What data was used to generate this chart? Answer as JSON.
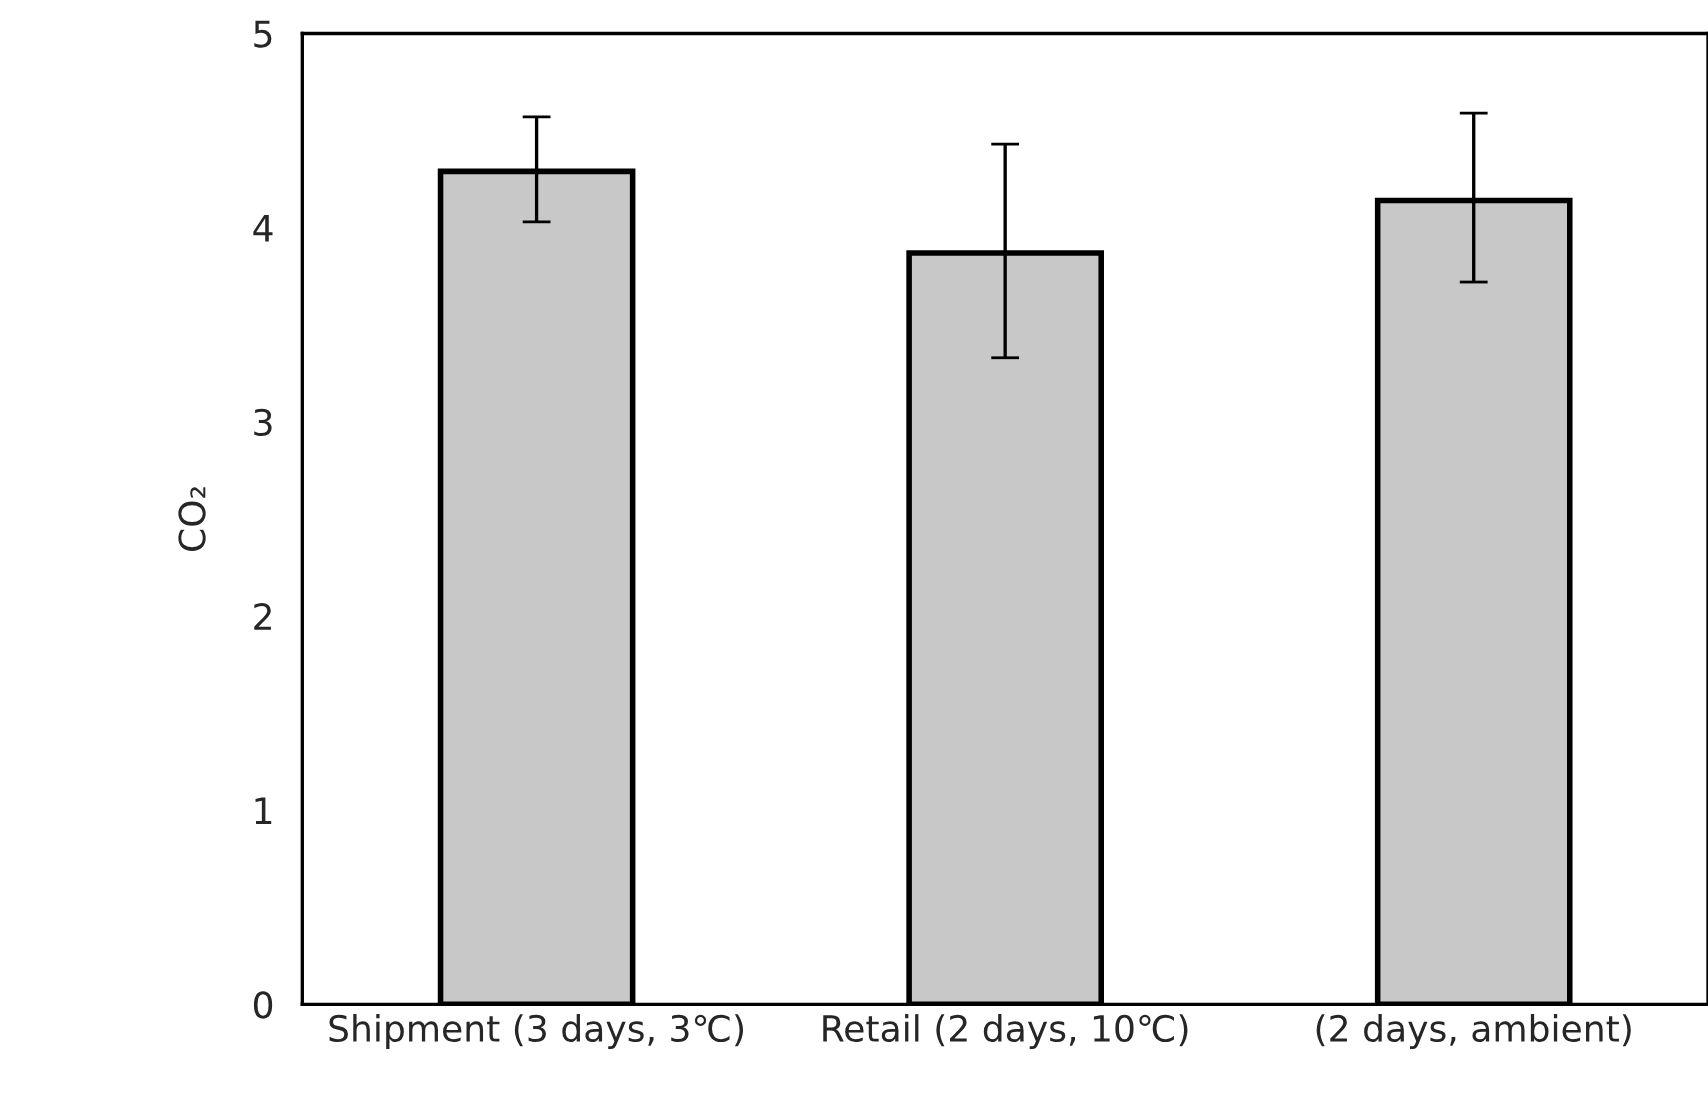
{
  "chart_data": {
    "type": "bar",
    "ylabel": "CO₂",
    "categories": [
      "Shipment (3 days, 3℃)",
      "Retail (2 days, 10℃)",
      "(2 days, ambient)"
    ],
    "values": [
      4.29,
      3.87,
      4.14
    ],
    "errors": [
      [
        4.03,
        4.57
      ],
      [
        3.33,
        4.43
      ],
      [
        3.72,
        4.59
      ]
    ],
    "color": "#c8c8c8",
    "ylim": [
      0,
      5
    ],
    "yticks": [
      0,
      1,
      2,
      3,
      4,
      5
    ],
    "grid": false,
    "legend": false
  }
}
